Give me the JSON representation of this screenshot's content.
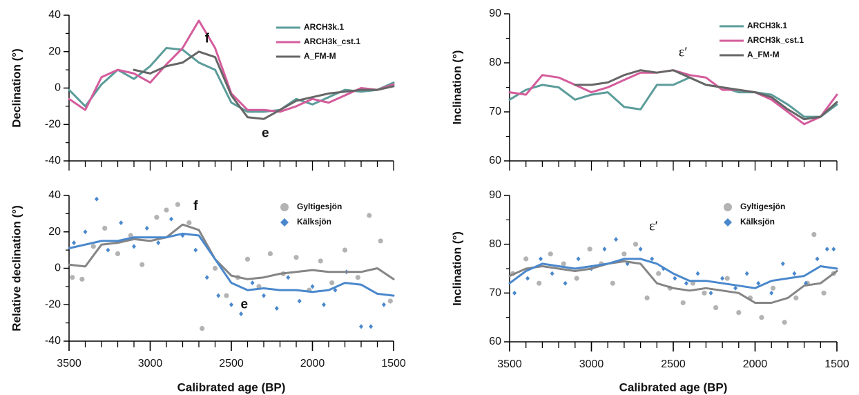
{
  "chart_data": [
    {
      "type": "line",
      "ylabel": "Declination (°)",
      "xlim": [
        3500,
        1500
      ],
      "ylim": [
        -40,
        40
      ],
      "yticks": [
        -40,
        -20,
        0,
        20,
        40
      ],
      "legend": "upper right",
      "annotations": [
        "f",
        "e"
      ],
      "x": [
        3500,
        3400,
        3300,
        3200,
        3100,
        3000,
        2900,
        2800,
        2700,
        2600,
        2500,
        2400,
        2300,
        2200,
        2100,
        2000,
        1900,
        1800,
        1700,
        1600,
        1500
      ],
      "series": [
        {
          "name": "ARCH3k.1",
          "color": "#5b9c9a",
          "values": [
            -1,
            -10,
            2,
            10,
            5,
            12,
            22,
            21,
            14,
            10,
            -8,
            -13,
            -13,
            -12,
            -6,
            -9,
            -5,
            -1,
            -2,
            -1,
            3
          ]
        },
        {
          "name": "ARCH3k_cst.1",
          "color": "#d45c9c",
          "values": [
            -6,
            -12,
            6,
            10,
            8,
            3,
            13,
            22,
            37,
            22,
            -3,
            -12,
            -12,
            -13,
            -10,
            -6,
            -8,
            -4,
            0,
            -1,
            2
          ]
        },
        {
          "name": "A_FM-M",
          "color": "#666666",
          "values": [
            null,
            null,
            null,
            null,
            10,
            8,
            12,
            14,
            20,
            17,
            -4,
            -16,
            -17,
            -12,
            -7,
            -5,
            -3,
            -2,
            -1,
            -1,
            1
          ]
        }
      ]
    },
    {
      "type": "line",
      "ylabel": "Inclination (°)",
      "xlim": [
        3500,
        1500
      ],
      "ylim": [
        60,
        90
      ],
      "yticks": [
        60,
        70,
        80,
        90
      ],
      "legend": "upper right",
      "annotations": [
        "ε′"
      ],
      "x": [
        3500,
        3400,
        3300,
        3200,
        3100,
        3000,
        2900,
        2800,
        2700,
        2600,
        2500,
        2400,
        2300,
        2200,
        2100,
        2000,
        1900,
        1800,
        1700,
        1600,
        1500
      ],
      "series": [
        {
          "name": "ARCH3k.1",
          "color": "#5b9c9a",
          "values": [
            72.5,
            74.5,
            75.5,
            75,
            72.5,
            73.5,
            74,
            71,
            70.5,
            75.5,
            75.5,
            77,
            75.5,
            75,
            74,
            74,
            73.5,
            71.5,
            69,
            69,
            71.5
          ]
        },
        {
          "name": "ARCH3k_cst.1",
          "color": "#d45c9c",
          "values": [
            74,
            73.5,
            77.5,
            77,
            75.5,
            74,
            75,
            76.5,
            78,
            78,
            78.5,
            77.5,
            77,
            74.5,
            74.5,
            74,
            72.5,
            70,
            67.5,
            69,
            73.5
          ]
        },
        {
          "name": "A_FM-M",
          "color": "#666666",
          "values": [
            null,
            null,
            null,
            null,
            75.5,
            75.5,
            76,
            77.5,
            78.5,
            78,
            78.5,
            77,
            75.5,
            75,
            74.5,
            74,
            73,
            70.5,
            68.5,
            69,
            72
          ]
        }
      ]
    },
    {
      "type": "scatter",
      "ylabel": "Relative declination (°)",
      "xlabel": "Calibrated age (BP)",
      "xlim": [
        3500,
        1500
      ],
      "xticks": [
        3500,
        3000,
        2500,
        2000,
        1500
      ],
      "ylim": [
        -40,
        40
      ],
      "yticks": [
        -40,
        -20,
        0,
        20,
        40
      ],
      "legend": "upper right",
      "annotations": [
        "f",
        "e"
      ],
      "x": [
        3500,
        3400,
        3300,
        3200,
        3100,
        3000,
        2900,
        2800,
        2700,
        2600,
        2500,
        2400,
        2300,
        2200,
        2100,
        2000,
        1900,
        1800,
        1700,
        1600,
        1500
      ],
      "series": [
        {
          "name": "Gyltigesjön",
          "color": "#b3b3b3",
          "line_color": "#858585",
          "marker": "circle",
          "points_x": [
            3480,
            3420,
            3350,
            3280,
            3200,
            3120,
            3050,
            2960,
            2900,
            2830,
            2760,
            2680,
            2600,
            2530,
            2460,
            2400,
            2330,
            2260,
            2180,
            2100,
            2020,
            1950,
            1880,
            1800,
            1720,
            1650,
            1580,
            1520
          ],
          "points": [
            -5,
            -6,
            12,
            22,
            8,
            18,
            2,
            28,
            32,
            35,
            25,
            -33,
            0,
            -15,
            -5,
            5,
            -10,
            8,
            -3,
            6,
            -12,
            4,
            -8,
            10,
            -5,
            29,
            15,
            -18
          ],
          "values": [
            2,
            1,
            13,
            14,
            16,
            15,
            17,
            24,
            21,
            5,
            -4,
            -6,
            -5,
            -3,
            -2,
            -1,
            -2,
            -2,
            -2,
            0,
            -6
          ]
        },
        {
          "name": "Kälksjön",
          "color": "#4a88cc",
          "line_color": "#4a88cc",
          "marker": "diamond",
          "points_x": [
            3470,
            3400,
            3330,
            3260,
            3180,
            3100,
            3020,
            2950,
            2870,
            2800,
            2720,
            2650,
            2580,
            2500,
            2440,
            2370,
            2300,
            2220,
            2150,
            2080,
            2000,
            1930,
            1860,
            1790,
            1700,
            1640,
            1560
          ],
          "points": [
            14,
            20,
            38,
            10,
            25,
            12,
            22,
            14,
            27,
            18,
            10,
            -5,
            -15,
            -20,
            -25,
            -8,
            -15,
            -22,
            -5,
            -18,
            -10,
            -20,
            -12,
            -2,
            -32,
            -32,
            -20
          ],
          "values": [
            11,
            13,
            15,
            15,
            17,
            17,
            17,
            19,
            18,
            5,
            -8,
            -12,
            -11,
            -12,
            -12,
            -13,
            -12,
            -8,
            -9,
            -14,
            -15
          ]
        }
      ]
    },
    {
      "type": "scatter",
      "ylabel": "Inclination (°)",
      "xlabel": "Calibrated age (BP)",
      "xlim": [
        3500,
        1500
      ],
      "xticks": [
        3500,
        3000,
        2500,
        2000,
        1500
      ],
      "ylim": [
        60,
        90
      ],
      "yticks": [
        60,
        70,
        80,
        90
      ],
      "legend": "upper right",
      "annotations": [
        "ε′"
      ],
      "x": [
        3500,
        3400,
        3300,
        3200,
        3100,
        3000,
        2900,
        2800,
        2700,
        2600,
        2500,
        2400,
        2300,
        2200,
        2100,
        2000,
        1900,
        1800,
        1700,
        1600,
        1500
      ],
      "series": [
        {
          "name": "Gyltigesjön",
          "color": "#b3b3b3",
          "line_color": "#858585",
          "marker": "circle",
          "points_x": [
            3480,
            3400,
            3320,
            3250,
            3170,
            3090,
            3010,
            2940,
            2870,
            2800,
            2730,
            2660,
            2590,
            2520,
            2440,
            2380,
            2310,
            2240,
            2170,
            2100,
            2030,
            1960,
            1890,
            1820,
            1750,
            1680,
            1640,
            1580,
            1520
          ],
          "points": [
            74,
            77,
            72,
            78,
            76,
            73,
            79,
            76,
            72,
            78,
            80,
            69,
            74,
            71,
            68,
            72,
            70,
            67,
            73,
            66,
            69,
            65,
            71,
            64,
            69,
            72,
            82,
            70,
            74
          ],
          "values": [
            73.5,
            75,
            75.5,
            75,
            74.5,
            75,
            76,
            76.5,
            76,
            72,
            71,
            70.5,
            71,
            70.5,
            70,
            68,
            68,
            69,
            71.5,
            72,
            74.5
          ]
        },
        {
          "name": "Kälksjön",
          "color": "#4a88cc",
          "line_color": "#4a88cc",
          "marker": "diamond",
          "points_x": [
            3470,
            3390,
            3310,
            3240,
            3160,
            3080,
            3000,
            2920,
            2850,
            2780,
            2700,
            2630,
            2560,
            2490,
            2420,
            2350,
            2270,
            2200,
            2120,
            2050,
            1980,
            1900,
            1830,
            1760,
            1690,
            1620,
            1560,
            1520
          ],
          "points": [
            70,
            73,
            77,
            74,
            72,
            77,
            75,
            79,
            81,
            76,
            79,
            77,
            75,
            73,
            72,
            74,
            70,
            73,
            71,
            74,
            72,
            70,
            76,
            74,
            72,
            77,
            79,
            79
          ],
          "values": [
            72,
            74.5,
            76,
            75.5,
            75,
            75.5,
            76,
            77,
            77,
            76,
            74,
            72.5,
            72.5,
            72,
            71.5,
            71,
            72.5,
            73,
            73.5,
            75.5,
            75
          ]
        }
      ]
    }
  ]
}
